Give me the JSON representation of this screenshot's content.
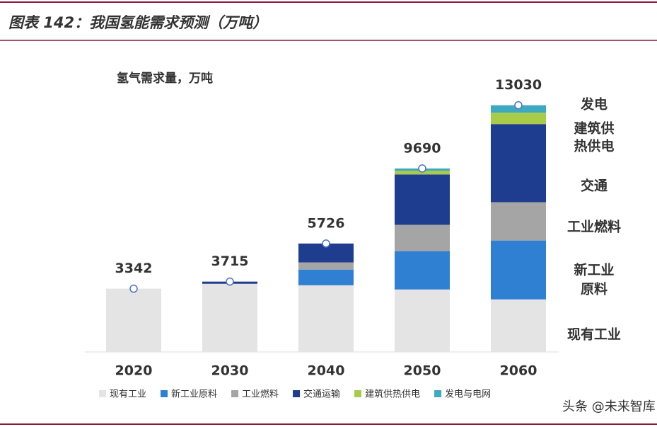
{
  "header": {
    "title": "图表 142：我国氢能需求预测（万吨）"
  },
  "chart_data": {
    "type": "stacked-bar",
    "subtitle": "氢气需求量，万吨",
    "categories": [
      "2020",
      "2030",
      "2040",
      "2050",
      "2060"
    ],
    "series": [
      {
        "name": "现有工业",
        "color": "#e4e4e4",
        "values": [
          3342,
          3600,
          3520,
          3300,
          2775
        ]
      },
      {
        "name": "新工业原料",
        "color": "#2f80d2",
        "values": [
          0,
          0,
          830,
          2025,
          3110
        ]
      },
      {
        "name": "工业燃料",
        "color": "#a5a5a5",
        "values": [
          0,
          0,
          380,
          1390,
          2025
        ]
      },
      {
        "name": "交通运输",
        "color": "#1f3d8e",
        "values": [
          0,
          115,
          996,
          2660,
          4125
        ]
      },
      {
        "name": "建筑供热供电",
        "color": "#a8cc4a",
        "values": [
          0,
          0,
          0,
          200,
          600
        ]
      },
      {
        "name": "发电与电网",
        "color": "#3ea9c0",
        "values": [
          0,
          0,
          0,
          115,
          395
        ]
      }
    ],
    "totals": [
      3342,
      3715,
      5726,
      9690,
      13030
    ],
    "annotations": [
      "发电",
      "建筑供",
      "热供电",
      "交通",
      "工业燃料",
      "新工业",
      "原料",
      "现有工业"
    ],
    "watermark": "头条 @未来智库"
  }
}
